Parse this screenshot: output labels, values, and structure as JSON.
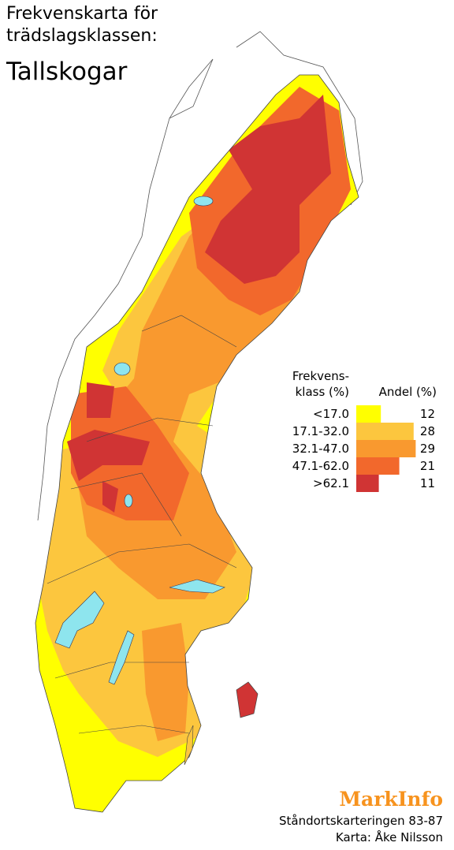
{
  "title_line1": "Frekvenskarta för",
  "title_line2": "trädslagsklassen:",
  "subtitle": "Tallskogar",
  "legend": {
    "class_header_line1": "Frekvens-",
    "class_header_line2": "klass (%)",
    "share_header": "Andel (%)",
    "classes": [
      {
        "label": "<17.0",
        "share": 12,
        "color": "#ffff00"
      },
      {
        "label": "17.1-32.0",
        "share": 28,
        "color": "#fcc63e"
      },
      {
        "label": "32.1-47.0",
        "share": 29,
        "color": "#f9992f"
      },
      {
        "label": "47.1-62.0",
        "share": 21,
        "color": "#f2682c"
      },
      {
        "label": ">62.1",
        "share": 11,
        "color": "#d03434"
      }
    ]
  },
  "logo": "MarkInfo",
  "credit_line1": "Ståndortskarteringen 83-87",
  "credit_line2": "Karta: Åke Nilsson"
}
